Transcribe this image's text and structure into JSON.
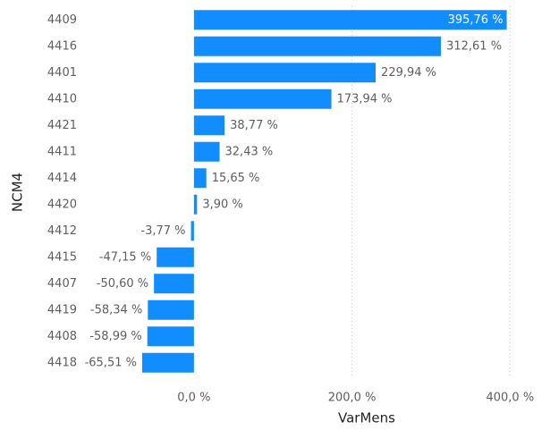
{
  "chart_data": {
    "type": "hbar",
    "x_label": "VarMens",
    "y_label": "NCM4",
    "categories": [
      "4409",
      "4416",
      "4401",
      "4410",
      "4421",
      "4411",
      "4414",
      "4420",
      "4412",
      "4415",
      "4407",
      "4419",
      "4408",
      "4418"
    ],
    "values": [
      395.76,
      312.61,
      229.94,
      173.94,
      38.77,
      32.43,
      15.65,
      3.9,
      -3.77,
      -47.15,
      -50.6,
      -58.34,
      -58.99,
      -65.51
    ],
    "value_labels": [
      "395,76 %",
      "312,61 %",
      "229,94 %",
      "173,94 %",
      "38,77 %",
      "32,43 %",
      "15,65 %",
      "3,90 %",
      "-3,77 %",
      "-47,15 %",
      "-50,60 %",
      "-58,34 %",
      "-58,99 %",
      "-65,51 %"
    ],
    "color": "#118dff",
    "xlim": [
      -130,
      420
    ],
    "xticks": [
      {
        "value": 0,
        "label": "0,0 %"
      },
      {
        "value": 200,
        "label": "200,0 %"
      },
      {
        "value": 400,
        "label": "400,0 %"
      }
    ],
    "grid": true
  }
}
